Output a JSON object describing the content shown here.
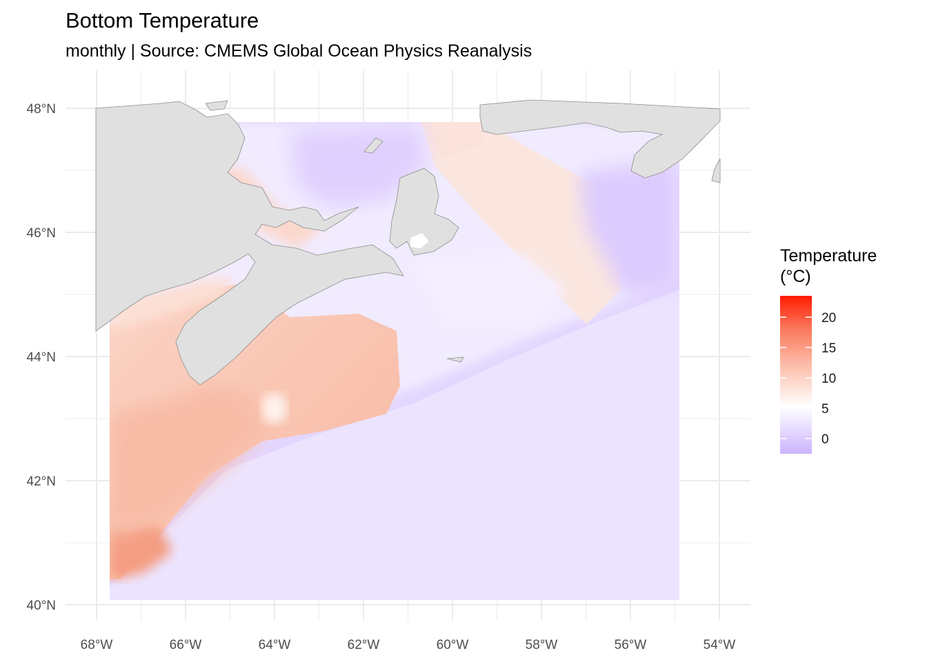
{
  "title": "Bottom Temperature",
  "subtitle": "monthly | Source: CMEMS Global Ocean Physics Reanalysis",
  "chart_data": {
    "type": "heatmap",
    "title": "Bottom Temperature",
    "subtitle": "monthly | Source: CMEMS Global Ocean Physics Reanalysis",
    "x_ticks": [
      "68°W",
      "66°W",
      "64°W",
      "62°W",
      "60°W",
      "58°W",
      "56°W",
      "54°W"
    ],
    "y_ticks": [
      "48°N",
      "46°N",
      "44°N",
      "42°N",
      "40°N"
    ],
    "xlim": [
      -68,
      -54
    ],
    "ylim": [
      40,
      48
    ],
    "grid": true,
    "legend": {
      "title_line1": "Temperature",
      "title_line2": "(°C)",
      "ticks": [
        "20",
        "15",
        "10",
        "5",
        "0"
      ],
      "tick_values": [
        20,
        15,
        10,
        5,
        0
      ],
      "range": [
        -2.5,
        23.5
      ],
      "low_color": "#cbb4ff",
      "mid_color": "#ffffff",
      "high_color": "#ff1a00",
      "placement": "right"
    },
    "colors": {
      "land": "#e0e0e0",
      "grid": "#ebebeb"
    }
  }
}
